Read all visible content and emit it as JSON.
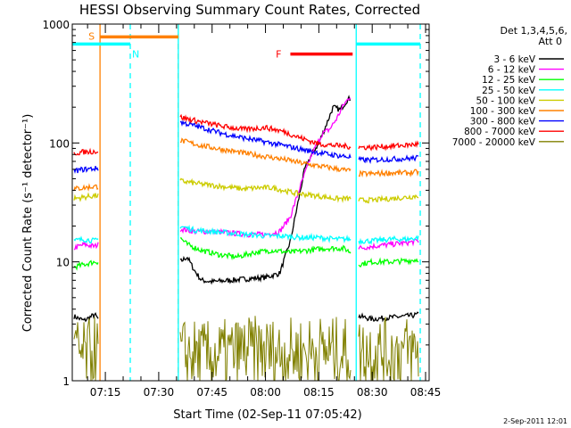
{
  "chart_data": {
    "type": "line",
    "title": "HESSI Observing Summary Count Rates, Corrected",
    "xlabel": "Start Time (02-Sep-11 07:05:42)",
    "ylabel": "Corrected Count Rate (s⁻¹ detector⁻¹)",
    "y_scale": "log",
    "ylim": [
      1,
      1000
    ],
    "xlim": [
      "07:05:42",
      "08:46:00"
    ],
    "x_ticks": [
      "07:15",
      "07:30",
      "07:45",
      "08:00",
      "08:15",
      "08:30",
      "08:45"
    ],
    "y_ticks": [
      "1",
      "10",
      "100",
      "1000"
    ],
    "legend_header": [
      "Det 1,3,4,5,6,",
      "Att 0"
    ],
    "legend_position": "right",
    "timestamp": "2-Sep-2011 12:01",
    "gaps": [
      [
        "07:13:30",
        "07:35:30"
      ],
      [
        "08:24:30",
        "08:26:00"
      ]
    ],
    "series": [
      {
        "name": "3 - 6 keV",
        "color": "#000000",
        "segments": [
          {
            "x": [
              "07:06",
              "07:09",
              "07:12",
              "07:13"
            ],
            "y": [
              3.5,
              3.2,
              3.6,
              3.3
            ]
          },
          {
            "x": [
              "07:36",
              "07:38",
              "07:40",
              "07:42",
              "07:45",
              "07:50",
              "07:55",
              "08:00",
              "08:04",
              "08:07",
              "08:09",
              "08:11",
              "08:13",
              "08:15",
              "08:17",
              "08:19",
              "08:21",
              "08:23",
              "08:24"
            ],
            "y": [
              10,
              11,
              8.5,
              7,
              6.8,
              7,
              7.2,
              7.4,
              8,
              15,
              30,
              60,
              80,
              100,
              140,
              200,
              190,
              230,
              240
            ]
          },
          {
            "x": [
              "08:26",
              "08:30",
              "08:35",
              "08:40",
              "08:43"
            ],
            "y": [
              3.5,
              3.3,
              3.4,
              3.5,
              3.6
            ]
          }
        ]
      },
      {
        "name": "6 - 12 keV",
        "color": "#ff00ff",
        "segments": [
          {
            "x": [
              "07:06",
              "07:09",
              "07:12",
              "07:13"
            ],
            "y": [
              13,
              14,
              13.5,
              14
            ]
          },
          {
            "x": [
              "07:36",
              "07:40",
              "07:45",
              "07:50",
              "07:55",
              "08:00",
              "08:04",
              "08:07",
              "08:10",
              "08:13",
              "08:16",
              "08:18",
              "08:20",
              "08:22",
              "08:24"
            ],
            "y": [
              19,
              18,
              18,
              17.5,
              17,
              17,
              18,
              24,
              45,
              80,
              120,
              130,
              160,
              210,
              250
            ]
          },
          {
            "x": [
              "08:26",
              "08:30",
              "08:35",
              "08:40",
              "08:43"
            ],
            "y": [
              13,
              13.5,
              14,
              14.5,
              15
            ]
          }
        ]
      },
      {
        "name": "12 - 25 keV",
        "color": "#00ff00",
        "segments": [
          {
            "x": [
              "07:06",
              "07:09",
              "07:12",
              "07:13"
            ],
            "y": [
              9,
              9.5,
              10,
              10
            ]
          },
          {
            "x": [
              "07:36",
              "07:38",
              "07:42",
              "07:47",
              "07:52",
              "07:57",
              "08:02",
              "08:07",
              "08:12",
              "08:17",
              "08:22",
              "08:24"
            ],
            "y": [
              16,
              14,
              12.5,
              11.5,
              11,
              12,
              12.5,
              12,
              12.5,
              13,
              13,
              12
            ]
          },
          {
            "x": [
              "08:26",
              "08:30",
              "08:35",
              "08:40",
              "08:43"
            ],
            "y": [
              9.5,
              10,
              10,
              10.2,
              10.5
            ]
          }
        ]
      },
      {
        "name": "25 - 50 keV",
        "color": "#00ffff",
        "segments": [
          {
            "x": [
              "07:06",
              "07:09",
              "07:12",
              "07:13"
            ],
            "y": [
              15,
              15.5,
              15,
              15.5
            ]
          },
          {
            "x": [
              "07:36",
              "07:40",
              "07:45",
              "07:50",
              "07:55",
              "08:00",
              "08:05",
              "08:10",
              "08:15",
              "08:20",
              "08:24"
            ],
            "y": [
              20,
              18.5,
              18,
              17.5,
              17,
              16.5,
              16.5,
              16,
              16,
              15.5,
              15.5
            ]
          },
          {
            "x": [
              "08:26",
              "08:30",
              "08:35",
              "08:40",
              "08:43"
            ],
            "y": [
              15,
              15,
              15.5,
              15.5,
              16
            ]
          }
        ]
      },
      {
        "name": "50 - 100 keV",
        "color": "#cccc00",
        "segments": [
          {
            "x": [
              "07:06",
              "07:09",
              "07:12",
              "07:13"
            ],
            "y": [
              34,
              35,
              36,
              36
            ]
          },
          {
            "x": [
              "07:36",
              "07:42",
              "07:48",
              "07:54",
              "07:58",
              "08:02",
              "08:08",
              "08:14",
              "08:20",
              "08:24"
            ],
            "y": [
              48,
              45,
              43,
              41,
              42,
              42,
              38,
              36,
              34,
              34
            ]
          },
          {
            "x": [
              "08:26",
              "08:30",
              "08:35",
              "08:40",
              "08:43"
            ],
            "y": [
              33,
              33,
              34,
              35,
              36
            ]
          }
        ]
      },
      {
        "name": "100 - 300 keV",
        "color": "#ff8000",
        "segments": [
          {
            "x": [
              "07:06",
              "07:09",
              "07:12",
              "07:13"
            ],
            "y": [
              41,
              42,
              43,
              43
            ]
          },
          {
            "x": [
              "07:36",
              "07:42",
              "07:48",
              "07:54",
              "08:00",
              "08:06",
              "08:12",
              "08:18",
              "08:24"
            ],
            "y": [
              105,
              95,
              88,
              82,
              77,
              72,
              66,
              62,
              58
            ]
          },
          {
            "x": [
              "08:26",
              "08:30",
              "08:35",
              "08:40",
              "08:43"
            ],
            "y": [
              55,
              55,
              56,
              56,
              57
            ]
          }
        ]
      },
      {
        "name": "300 - 800 keV",
        "color": "#0000ff",
        "segments": [
          {
            "x": [
              "07:06",
              "07:09",
              "07:12",
              "07:13"
            ],
            "y": [
              58,
              60,
              61,
              61
            ]
          },
          {
            "x": [
              "07:36",
              "07:42",
              "07:48",
              "07:54",
              "08:00",
              "08:06",
              "08:12",
              "08:18",
              "08:24"
            ],
            "y": [
              150,
              135,
              120,
              110,
              102,
              94,
              86,
              80,
              76
            ]
          },
          {
            "x": [
              "08:26",
              "08:30",
              "08:35",
              "08:40",
              "08:43"
            ],
            "y": [
              72,
              72,
              73,
              74,
              75
            ]
          }
        ]
      },
      {
        "name": "800 - 7000 keV",
        "color": "#ff0000",
        "segments": [
          {
            "x": [
              "07:06",
              "07:09",
              "07:12",
              "07:13"
            ],
            "y": [
              82,
              84,
              85,
              85
            ]
          },
          {
            "x": [
              "07:36",
              "07:42",
              "07:48",
              "07:54",
              "08:00",
              "08:05",
              "08:10",
              "08:15",
              "08:20",
              "08:24"
            ],
            "y": [
              165,
              150,
              138,
              130,
              135,
              125,
              110,
              98,
              95,
              93
            ]
          },
          {
            "x": [
              "08:26",
              "08:30",
              "08:35",
              "08:40",
              "08:43"
            ],
            "y": [
              92,
              92,
              94,
              96,
              98
            ]
          }
        ]
      },
      {
        "name": "7000 - 20000 keV",
        "color": "#808000",
        "segments": [
          {
            "x": [
              "07:06",
              "07:09",
              "07:12",
              "07:13"
            ],
            "y": [
              1.8,
              1.6,
              1.8,
              1.7
            ]
          },
          {
            "x": [
              "07:36",
              "07:45",
              "07:55",
              "08:05",
              "08:15",
              "08:24"
            ],
            "y": [
              1.7,
              1.6,
              1.8,
              1.7,
              1.8,
              1.7
            ]
          },
          {
            "x": [
              "08:26",
              "08:30",
              "08:35",
              "08:40",
              "08:43"
            ],
            "y": [
              1.7,
              1.8,
              1.7,
              1.8,
              1.7
            ]
          }
        ]
      }
    ],
    "bars": [
      {
        "label": "S",
        "color": "#ff8000",
        "x": [
          "07:13:30",
          "07:35:30"
        ],
        "y": 780
      },
      {
        "label": "N",
        "color": "#00ffff",
        "x": [
          "07:05:42",
          "07:22:00"
        ],
        "y": 680
      },
      {
        "label": "",
        "color": "#00ffff",
        "x": [
          "08:25:30",
          "08:43:30"
        ],
        "y": 680
      },
      {
        "label": "F",
        "color": "#ff0000",
        "x": [
          "08:07:00",
          "08:24:30"
        ],
        "y": 560
      }
    ],
    "vlines": [
      {
        "x": "07:13:30",
        "color": "#ff8000",
        "style": "solid"
      },
      {
        "x": "07:22:00",
        "color": "#00ffff",
        "style": "dashed"
      },
      {
        "x": "07:35:30",
        "color": "#ff8000",
        "style": "dashed"
      },
      {
        "x": "07:35:30",
        "color": "#00ffff",
        "style": "solid"
      },
      {
        "x": "08:25:30",
        "color": "#00ffff",
        "style": "solid"
      },
      {
        "x": "08:43:30",
        "color": "#00ffff",
        "style": "dashed"
      }
    ]
  }
}
